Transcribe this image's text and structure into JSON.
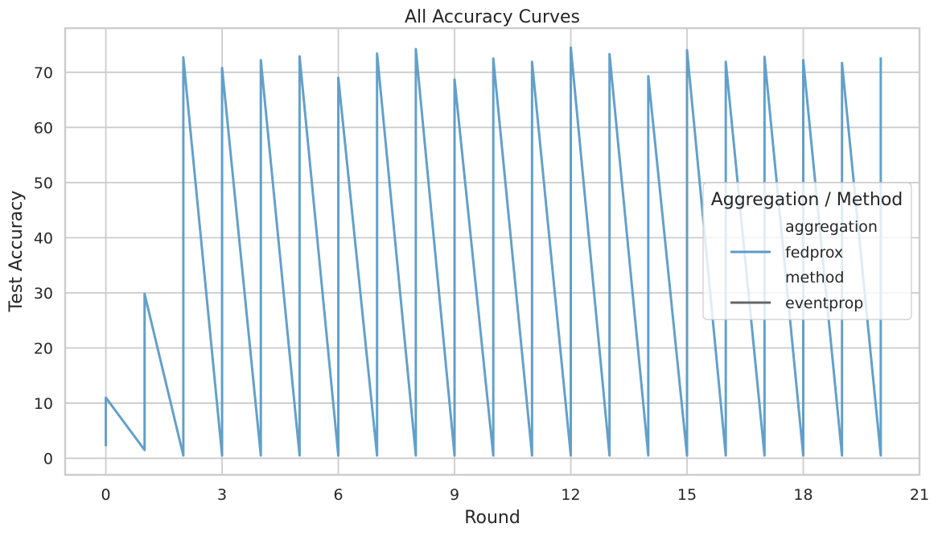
{
  "chart_data": {
    "type": "line",
    "title": "All Accuracy Curves",
    "xlabel": "Round",
    "ylabel": "Test Accuracy",
    "xlim": [
      -1.05,
      21
    ],
    "ylim": [
      -3,
      78
    ],
    "xticks": [
      0,
      3,
      6,
      9,
      12,
      15,
      18,
      21
    ],
    "yticks": [
      0,
      10,
      20,
      30,
      40,
      50,
      60,
      70
    ],
    "grid": true,
    "legend": {
      "title": "Aggregation / Method",
      "placement": "center-right",
      "entries": [
        {
          "label": "aggregation",
          "kind": "header"
        },
        {
          "label": "fedprox",
          "kind": "line",
          "color": "#5b9bc6"
        },
        {
          "label": "method",
          "kind": "header"
        },
        {
          "label": "eventprop",
          "kind": "line",
          "color": "#666666"
        }
      ]
    },
    "series": [
      {
        "name": "fedprox",
        "color": "#5b9bc6",
        "points": [
          [
            0,
            2.2
          ],
          [
            0,
            11
          ],
          [
            1,
            1.5
          ],
          [
            1,
            29.8
          ],
          [
            2,
            0.5
          ],
          [
            2,
            72.7
          ],
          [
            3,
            0.5
          ],
          [
            3,
            70.8
          ],
          [
            4,
            0.5
          ],
          [
            4,
            72.2
          ],
          [
            5,
            0.5
          ],
          [
            5,
            72.9
          ],
          [
            6,
            0.5
          ],
          [
            6,
            69
          ],
          [
            7,
            0.5
          ],
          [
            7,
            73.4
          ],
          [
            8,
            0.5
          ],
          [
            8,
            74.2
          ],
          [
            9,
            0.5
          ],
          [
            9,
            68.7
          ],
          [
            10,
            0.5
          ],
          [
            10,
            72.5
          ],
          [
            11,
            0.5
          ],
          [
            11,
            71.9
          ],
          [
            12,
            0.5
          ],
          [
            12,
            74.5
          ],
          [
            13,
            0.5
          ],
          [
            13,
            73.3
          ],
          [
            14,
            0.5
          ],
          [
            14,
            69.3
          ],
          [
            15,
            0.5
          ],
          [
            15,
            74
          ],
          [
            16,
            0.5
          ],
          [
            16,
            71.9
          ],
          [
            17,
            0.5
          ],
          [
            17,
            72.8
          ],
          [
            18,
            0.5
          ],
          [
            18,
            72.2
          ],
          [
            19,
            0.5
          ],
          [
            19,
            71.7
          ],
          [
            20,
            0.5
          ],
          [
            20,
            72.7
          ]
        ]
      }
    ]
  }
}
